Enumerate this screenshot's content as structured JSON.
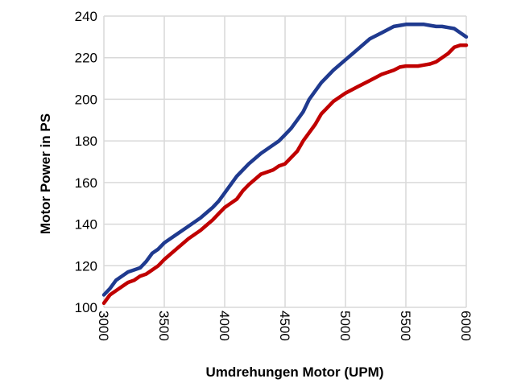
{
  "chart_data": {
    "type": "line",
    "xlabel": "Umdrehungen Motor (UPM)",
    "ylabel": "Motor Power in PS",
    "xlim": [
      3000,
      6000
    ],
    "ylim": [
      100,
      240
    ],
    "x_ticks": [
      "3000",
      "3500",
      "4000",
      "4500",
      "5000",
      "5500",
      "6000"
    ],
    "y_ticks": [
      "100",
      "120",
      "140",
      "160",
      "180",
      "200",
      "220",
      "240"
    ],
    "grid": true,
    "series": [
      {
        "color": "#1f3a8f",
        "x": [
          3000,
          3050,
          3100,
          3150,
          3200,
          3250,
          3300,
          3350,
          3400,
          3450,
          3500,
          3600,
          3700,
          3800,
          3900,
          3950,
          4000,
          4050,
          4100,
          4150,
          4200,
          4300,
          4400,
          4450,
          4500,
          4550,
          4600,
          4650,
          4700,
          4750,
          4800,
          4850,
          4900,
          5000,
          5100,
          5200,
          5300,
          5400,
          5450,
          5500,
          5550,
          5600,
          5650,
          5700,
          5750,
          5800,
          5850,
          5900,
          5950,
          6000
        ],
        "values": [
          106,
          109,
          113,
          115,
          117,
          118,
          119,
          122,
          126,
          128,
          131,
          135,
          139,
          143,
          148,
          151,
          155,
          159,
          163,
          166,
          169,
          174,
          178,
          180,
          183,
          186,
          190,
          194,
          200,
          204,
          208,
          211,
          214,
          219,
          224,
          229,
          232,
          235,
          235.5,
          236,
          236,
          236,
          236,
          235.5,
          235,
          235,
          234.5,
          234,
          232,
          230
        ]
      },
      {
        "color": "#c00000",
        "x": [
          3000,
          3050,
          3100,
          3150,
          3200,
          3250,
          3300,
          3350,
          3400,
          3450,
          3500,
          3600,
          3700,
          3800,
          3900,
          3950,
          4000,
          4050,
          4100,
          4150,
          4200,
          4300,
          4400,
          4450,
          4500,
          4550,
          4600,
          4650,
          4700,
          4750,
          4800,
          4850,
          4900,
          5000,
          5100,
          5200,
          5300,
          5400,
          5450,
          5500,
          5550,
          5600,
          5650,
          5700,
          5750,
          5800,
          5850,
          5900,
          5950,
          6000
        ],
        "values": [
          102,
          106,
          108,
          110,
          112,
          113,
          115,
          116,
          118,
          120,
          123,
          128,
          133,
          137,
          142,
          145,
          148,
          150,
          152,
          156,
          159,
          164,
          166,
          168,
          169,
          172,
          175,
          180,
          184,
          188,
          193,
          196,
          199,
          203,
          206,
          209,
          212,
          214,
          215.5,
          216,
          216,
          216,
          216.5,
          217,
          218,
          220,
          222,
          225,
          226,
          226
        ]
      }
    ]
  }
}
